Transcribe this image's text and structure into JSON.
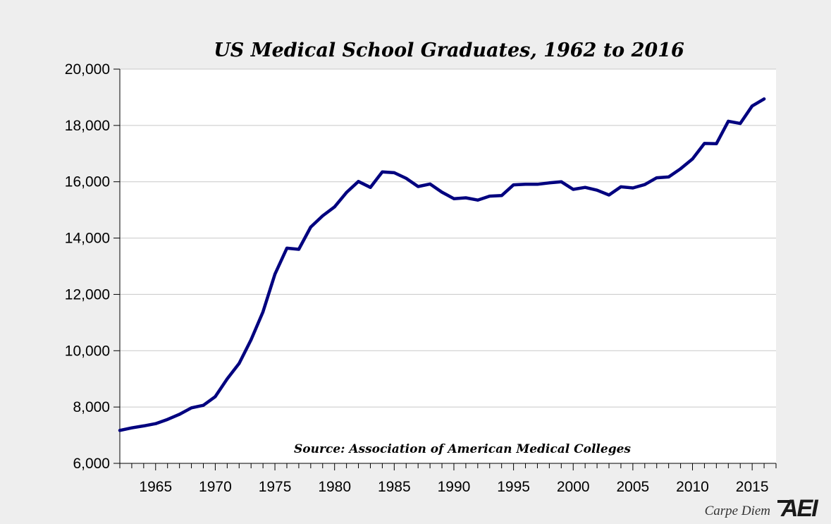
{
  "chart_data": {
    "type": "line",
    "title": "US Medical School Graduates, 1962 to 2016",
    "xlabel": "",
    "ylabel": "",
    "xlim": [
      1962,
      2017
    ],
    "ylim": [
      6000,
      20000
    ],
    "y_ticks": [
      6000,
      8000,
      10000,
      12000,
      14000,
      16000,
      18000,
      20000
    ],
    "y_tick_labels": [
      "6,000",
      "8,000",
      "10,000",
      "12,000",
      "14,000",
      "16,000",
      "18,000",
      "20,000"
    ],
    "x_ticks": [
      1965,
      1970,
      1975,
      1980,
      1985,
      1990,
      1995,
      2000,
      2005,
      2010,
      2015
    ],
    "x_tick_labels": [
      "1965",
      "1970",
      "1975",
      "1980",
      "1985",
      "1990",
      "1995",
      "2000",
      "2005",
      "2010",
      "2015"
    ],
    "grid": "horizontal",
    "line_color": "#00007f",
    "annotation": "Source: Association of American Medical Colleges",
    "series": [
      {
        "x": [
          1962,
          1963,
          1964,
          1965,
          1966,
          1967,
          1968,
          1969,
          1970,
          1971,
          1972,
          1973,
          1974,
          1975,
          1976,
          1977,
          1978,
          1979,
          1980,
          1981,
          1982,
          1983,
          1984,
          1985,
          1986,
          1987,
          1988,
          1989,
          1990,
          1991,
          1992,
          1993,
          1994,
          1995,
          1996,
          1997,
          1998,
          1999,
          2000,
          2001,
          2002,
          2003,
          2004,
          2005,
          2006,
          2007,
          2008,
          2009,
          2010,
          2011,
          2012,
          2013,
          2014,
          2015,
          2016
        ],
        "y": [
          7170,
          7260,
          7330,
          7410,
          7560,
          7740,
          7970,
          8060,
          8370,
          9000,
          9550,
          10390,
          11380,
          12720,
          13640,
          13600,
          14390,
          14790,
          15110,
          15620,
          16010,
          15800,
          16350,
          16320,
          16120,
          15830,
          15920,
          15630,
          15400,
          15430,
          15350,
          15490,
          15510,
          15890,
          15910,
          15910,
          15960,
          16000,
          15730,
          15800,
          15700,
          15530,
          15820,
          15780,
          15900,
          16140,
          16170,
          16460,
          16810,
          17360,
          17350,
          18150,
          18070,
          18690,
          18940
        ]
      }
    ]
  },
  "footer": {
    "brand": "Carpe Diem",
    "logo": "AEI"
  }
}
